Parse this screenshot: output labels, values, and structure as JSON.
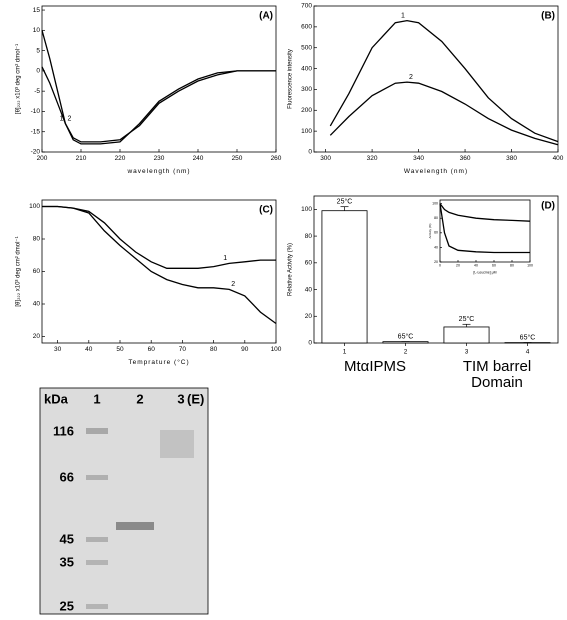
{
  "chart_data": [
    {
      "type": "line",
      "title": "(A)",
      "x_label": "wavelength (nm)",
      "y_label": "[θ]₂₂₂ x10³ deg cm² dmol⁻¹",
      "x": [
        200,
        202,
        204,
        206,
        208,
        210,
        215,
        220,
        225,
        230,
        235,
        240,
        245,
        250,
        255,
        260
      ],
      "series": [
        {
          "name": "1",
          "color": "#000000",
          "values": [
            10,
            3,
            -5,
            -13,
            -17,
            -18,
            -18,
            -17.5,
            -13,
            -7.5,
            -4.5,
            -2,
            -0.5,
            0,
            0,
            0
          ]
        },
        {
          "name": "2",
          "color": "#000000",
          "values": [
            1,
            -3,
            -8,
            -13,
            -16.5,
            -17.5,
            -17.5,
            -17,
            -13.5,
            -8,
            -5,
            -2.5,
            -1,
            0,
            0,
            0
          ]
        }
      ],
      "xlim": [
        200,
        260
      ],
      "xticks": [
        200,
        210,
        220,
        230,
        240,
        250,
        260
      ],
      "ylim": [
        -20,
        16
      ],
      "yticks": [
        -20,
        -15,
        -10,
        -5,
        0,
        5,
        10,
        15
      ]
    },
    {
      "type": "line",
      "title": "(B)",
      "x_label": "Wavelength (nm)",
      "y_label": "Fluorescence intensity",
      "x": [
        302,
        310,
        320,
        330,
        335,
        340,
        350,
        360,
        370,
        380,
        390,
        400
      ],
      "series": [
        {
          "name": "1",
          "color": "#000000",
          "values": [
            125,
            280,
            500,
            620,
            630,
            620,
            530,
            400,
            260,
            160,
            90,
            50
          ]
        },
        {
          "name": "2",
          "color": "#000000",
          "values": [
            80,
            170,
            270,
            330,
            335,
            330,
            290,
            230,
            160,
            105,
            65,
            35
          ]
        }
      ],
      "xlim": [
        295,
        400
      ],
      "xticks": [
        300,
        320,
        340,
        360,
        380,
        400
      ],
      "ylim": [
        0,
        700
      ],
      "yticks": [
        0,
        100,
        200,
        300,
        400,
        500,
        600,
        700
      ]
    },
    {
      "type": "line",
      "title": "(C)",
      "x_label": "Temprature (°C)",
      "y_label": "[θ]₂₂₂ x10³ deg cm² dmol⁻¹",
      "x": [
        25,
        30,
        35,
        40,
        45,
        50,
        55,
        60,
        65,
        70,
        75,
        80,
        85,
        90,
        95,
        100
      ],
      "series": [
        {
          "name": "1",
          "color": "#000000",
          "values": [
            100,
            100,
            99,
            97,
            90,
            80,
            72,
            66,
            62,
            62,
            62,
            63,
            65,
            66,
            67,
            67
          ]
        },
        {
          "name": "2",
          "color": "#000000",
          "values": [
            100,
            100,
            99,
            96,
            85,
            76,
            68,
            60,
            55,
            52,
            50,
            50,
            49,
            45,
            35,
            28
          ]
        }
      ],
      "xlim": [
        25,
        100
      ],
      "xticks": [
        30,
        40,
        50,
        60,
        70,
        80,
        90,
        100
      ],
      "ylim": [
        16,
        104
      ],
      "yticks": [
        20,
        40,
        60,
        80,
        100
      ]
    },
    {
      "type": "bar",
      "title": "(D)",
      "y_label": "Relative Activity (%)",
      "categories": [
        "1",
        "2",
        "3",
        "4"
      ],
      "values": [
        99,
        1,
        12,
        0.3
      ],
      "errors": [
        3,
        0,
        2,
        0
      ],
      "bar_labels": [
        "25°C",
        "65°C",
        "25°C",
        "65°C"
      ],
      "color": "#ffffff",
      "group_labels": [
        [
          "MtαIPMS"
        ],
        [
          "TIM barrel",
          "Domain"
        ]
      ],
      "ylim": [
        0,
        110
      ],
      "yticks": [
        0,
        20,
        40,
        60,
        80,
        100
      ]
    },
    {
      "type": "line",
      "x_label": "[L-Leucine] μM",
      "y_label": "Activity (%)",
      "x": [
        0,
        5,
        10,
        20,
        40,
        60,
        80,
        100
      ],
      "series": [
        {
          "color": "#000000",
          "values": [
            100,
            92,
            88,
            84,
            80,
            78,
            77,
            76
          ]
        },
        {
          "color": "#000000",
          "values": [
            100,
            60,
            42,
            36,
            34,
            33,
            33,
            33
          ]
        }
      ],
      "xlim": [
        0,
        100
      ],
      "xticks": [
        0,
        20,
        40,
        60,
        80,
        100
      ],
      "ylim": [
        20,
        105
      ],
      "yticks": [
        20,
        40,
        60,
        80,
        100
      ]
    }
  ],
  "gel": {
    "title": "(E)",
    "lane_header": "kDa",
    "lanes": [
      "1",
      "2",
      "3"
    ],
    "markers": [
      "116",
      "66",
      "45",
      "35",
      "25"
    ]
  }
}
